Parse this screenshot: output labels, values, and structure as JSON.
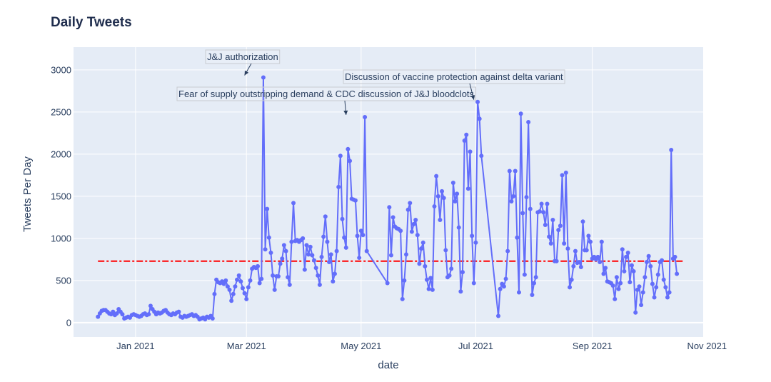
{
  "chart_data": {
    "type": "line",
    "title": "Daily Tweets",
    "xlabel": "date",
    "ylabel": "Tweets Per Day",
    "ylim": [
      -170,
      3270
    ],
    "xlim": [
      "2020-11-29",
      "2021-10-30"
    ],
    "x_ticks": [
      {
        "date": "2021-01-01",
        "label": "Jan 2021"
      },
      {
        "date": "2021-03-01",
        "label": "Mar 2021"
      },
      {
        "date": "2021-05-01",
        "label": "May 2021"
      },
      {
        "date": "2021-07-01",
        "label": "Jul 2021"
      },
      {
        "date": "2021-09-01",
        "label": "Sep 2021"
      },
      {
        "date": "2021-11-01",
        "label": "Nov 2021"
      }
    ],
    "y_ticks": [
      {
        "value": 0,
        "label": "0"
      },
      {
        "value": 500,
        "label": "500"
      },
      {
        "value": 1000,
        "label": "1000"
      },
      {
        "value": 1500,
        "label": "1500"
      },
      {
        "value": 2000,
        "label": "2000"
      },
      {
        "value": 2500,
        "label": "2500"
      },
      {
        "value": 3000,
        "label": "3000"
      }
    ],
    "mean_line": {
      "value": 730,
      "color": "#ff0000",
      "style": "dashdot"
    },
    "series": [
      {
        "name": "Tweets Per Day",
        "color": "#636efa",
        "start_date": "2020-12-12",
        "segments": [
          {
            "offset": 0,
            "values": [
              70,
              110,
              140,
              150,
              150,
              130,
              110,
              100,
              130,
              90,
              110,
              160,
              130,
              100,
              50,
              60,
              70,
              60,
              90,
              100,
              90,
              80,
              70,
              80,
              100,
              110,
              90,
              100,
              200,
              160,
              130,
              100,
              120,
              110,
              120,
              140,
              150,
              120,
              100,
              90,
              110,
              100,
              120,
              130,
              70,
              60,
              80,
              70,
              80,
              90,
              100,
              80,
              90,
              70,
              40,
              50,
              60,
              40,
              70,
              60,
              80,
              50,
              340,
              510,
              480,
              470,
              490,
              460,
              500,
              430,
              390,
              260,
              340,
              430,
              510,
              560,
              490,
              410,
              350,
              280,
              420,
              500,
              640,
              660,
              650,
              670,
              470,
              520,
              2910,
              870,
              1350,
              1010,
              830,
              560,
              390,
              550,
              550,
              700,
              760,
              920,
              850,
              540,
              450,
              960,
              1420,
              970,
              980,
              960,
              980,
              1000,
              630,
              920,
              810,
              900,
              800,
              740,
              650,
              560,
              450,
              780,
              1020,
              1260,
              960,
              720,
              810,
              490,
              580,
              850,
              1610,
              1980,
              1230,
              1010,
              890,
              2060,
              1920,
              1470,
              1460,
              1450,
              1030,
              770,
              1090,
              1040,
              2440,
              850
            ]
          },
          {
            "offset": 154,
            "values": [
              470,
              1370,
              800,
              1250,
              1140,
              1120,
              1110,
              1090,
              280,
              500,
              810,
              1340,
              1420,
              1080,
              1170,
              1220,
              1040,
              700,
              880,
              950,
              670,
              510,
              400,
              530,
              390,
              1380,
              1740,
              1500,
              1220,
              1560,
              1480,
              860,
              540,
              560,
              640,
              1660,
              1440,
              1530,
              1130,
              370,
              600,
              2160,
              2230,
              1590,
              2030,
              1030,
              470,
              950,
              2620,
              2420,
              1980
            ]
          },
          {
            "offset": 213,
            "values": [
              80,
              400,
              460,
              430,
              520,
              850,
              1800,
              1440,
              1500,
              1800,
              1010,
              360,
              2480,
              1300,
              570,
              1490,
              2380,
              1350,
              330,
              470,
              540,
              1310,
              1320,
              1410,
              1310,
              1160,
              1410,
              1020,
              940,
              1220,
              730,
              730,
              1100,
              1150,
              1750,
              940,
              1780,
              880,
              420,
              510,
              670,
              850,
              710,
              720,
              660,
              1200,
              860,
              860,
              1030,
              960,
              760,
              780,
              750,
              780,
              720,
              960,
              580,
              650,
              490,
              480,
              470,
              440,
              280,
              540,
              400,
              470,
              870,
              610,
              780,
              830,
              480,
              680,
              610,
              120,
              390,
              430,
              210,
              360,
              540,
              720,
              790,
              670,
              460,
              300,
              420,
              570,
              720,
              740,
              510,
              420,
              300,
              360,
              2050,
              760,
              780,
              580
            ]
          }
        ]
      }
    ],
    "annotations": [
      {
        "text": "J&J authorization",
        "date": "2021-02-28",
        "value": 2910
      },
      {
        "text": "Fear of supply outstripping demand & CDC discussion of J&J bloodclots",
        "date": "2021-04-23",
        "value": 2440
      },
      {
        "text": "Discussion of vaccine protection against delta variant",
        "date": "2021-06-30",
        "value": 2620
      }
    ]
  }
}
